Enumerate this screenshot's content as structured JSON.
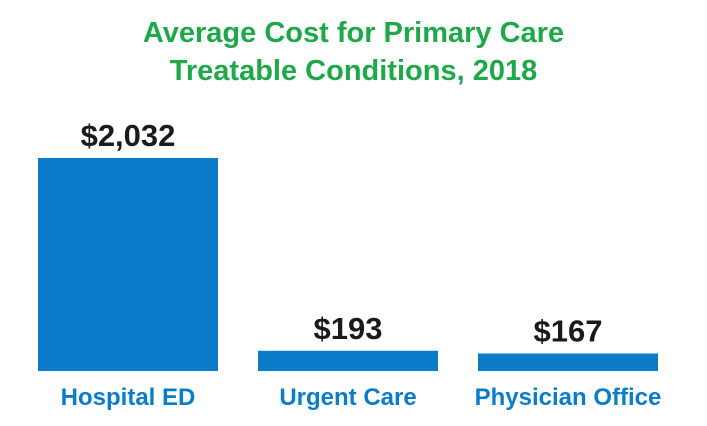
{
  "chart_data": {
    "type": "bar",
    "title_lines": [
      "Average Cost for Primary Care",
      "Treatable Conditions, 2018"
    ],
    "categories": [
      "Hospital ED",
      "Urgent Care",
      "Physician Office"
    ],
    "values": [
      2032,
      193,
      167
    ],
    "value_labels": [
      "$2,032",
      "$193",
      "$167"
    ],
    "xlabel": "",
    "ylabel": "",
    "grid": false,
    "legend": "none"
  },
  "colors": {
    "title": "#1ea84a",
    "bar": "#0a7cc9",
    "category_label": "#0a7cc9",
    "value_label": "#1a1a1a"
  }
}
